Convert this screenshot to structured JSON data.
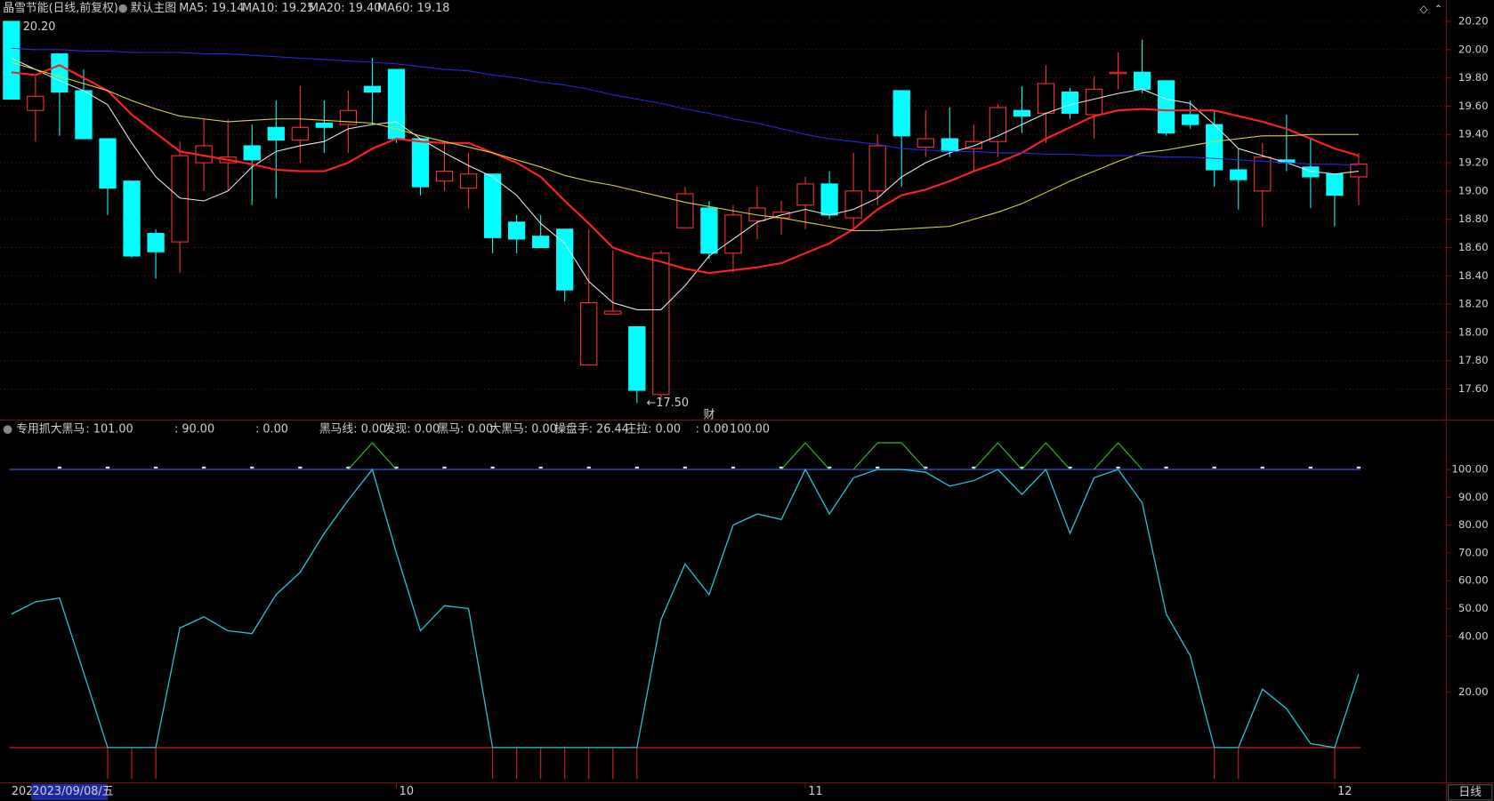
{
  "chart_data": [
    {
      "type": "candlestick",
      "title": "晶雪节能(日线,前复权)",
      "subtitle": "默认主图",
      "legend": [
        {
          "text": "MA5: 19.14",
          "color": "#e8e8e8"
        },
        {
          "text": "MA10: 19.25",
          "color": "#ff3030"
        },
        {
          "text": "MA20: 19.40",
          "color": "#e8e830"
        },
        {
          "text": "MA60: 19.18",
          "color": "#3a3aff"
        }
      ],
      "categories": [
        null,
        null,
        null,
        null,
        null,
        null,
        null,
        null,
        null,
        null,
        null,
        null,
        null,
        null,
        null,
        null,
        "10",
        null,
        null,
        null,
        null,
        null,
        null,
        null,
        null,
        null,
        null,
        null,
        null,
        null,
        null,
        null,
        null,
        "11",
        null,
        null,
        null,
        null,
        null,
        null,
        null,
        null,
        null,
        null,
        null,
        null,
        null,
        null,
        null,
        null,
        null,
        null,
        null,
        null,
        null,
        "12",
        null
      ],
      "open": [
        20.2,
        19.57,
        19.97,
        19.71,
        19.37,
        19.07,
        18.7,
        18.64,
        19.2,
        19.2,
        19.32,
        19.45,
        19.36,
        19.48,
        19.47,
        19.74,
        19.86,
        19.37,
        19.07,
        19.02,
        19.12,
        18.78,
        18.68,
        18.73,
        17.77,
        18.13,
        18.04,
        17.56,
        18.74,
        18.88,
        18.56,
        18.79,
        18.81,
        18.9,
        19.05,
        18.81,
        19.0,
        19.71,
        19.31,
        19.37,
        19.3,
        19.35,
        19.57,
        19.55,
        19.7,
        19.54,
        19.83,
        19.84,
        19.78,
        19.54,
        19.47,
        19.15,
        19.0,
        19.22,
        19.17,
        19.12,
        19.1
      ],
      "high": [
        20.2,
        19.81,
        19.97,
        19.86,
        19.37,
        19.07,
        18.73,
        19.35,
        19.51,
        19.51,
        19.47,
        19.64,
        19.74,
        19.64,
        19.71,
        19.94,
        19.86,
        19.37,
        19.34,
        19.27,
        19.12,
        18.83,
        18.83,
        18.73,
        18.73,
        18.58,
        18.04,
        18.58,
        19.03,
        18.93,
        18.9,
        19.03,
        18.93,
        19.1,
        19.14,
        19.27,
        19.4,
        19.71,
        19.57,
        19.59,
        19.47,
        19.61,
        19.74,
        19.89,
        19.73,
        19.81,
        19.98,
        20.07,
        19.78,
        19.64,
        19.57,
        19.3,
        19.34,
        19.54,
        19.37,
        19.12,
        19.27
      ],
      "low": [
        19.65,
        19.35,
        19.39,
        19.37,
        18.83,
        18.53,
        18.38,
        18.42,
        19.0,
        19.0,
        18.9,
        18.95,
        19.2,
        19.27,
        19.27,
        19.47,
        19.34,
        18.97,
        19.0,
        18.88,
        18.56,
        18.56,
        18.6,
        18.22,
        17.77,
        18.13,
        17.5,
        17.52,
        18.74,
        18.52,
        18.42,
        18.66,
        18.69,
        18.73,
        18.8,
        18.73,
        18.9,
        19.03,
        19.24,
        19.24,
        19.14,
        19.24,
        19.41,
        19.34,
        19.51,
        19.37,
        19.72,
        19.69,
        19.39,
        19.44,
        19.03,
        18.87,
        18.75,
        19.14,
        18.88,
        18.75,
        18.9
      ],
      "close": [
        19.65,
        19.67,
        19.7,
        19.37,
        19.02,
        18.54,
        18.57,
        19.25,
        19.32,
        19.24,
        19.22,
        19.36,
        19.45,
        19.45,
        19.57,
        19.7,
        19.37,
        19.03,
        19.14,
        19.12,
        18.67,
        18.66,
        18.6,
        18.3,
        18.21,
        18.15,
        17.59,
        18.56,
        18.98,
        18.56,
        18.83,
        18.88,
        18.85,
        19.05,
        18.83,
        19.0,
        19.32,
        19.39,
        19.37,
        19.28,
        19.35,
        19.59,
        19.53,
        19.76,
        19.55,
        19.72,
        19.84,
        19.72,
        19.41,
        19.47,
        19.15,
        19.08,
        19.24,
        19.2,
        19.1,
        18.97,
        19.19
      ],
      "up_color": "#ff3232",
      "down_color": "#00ffff",
      "ma": [
        {
          "color": "#e8e8e8",
          "values": [
            19.94,
            19.86,
            19.78,
            19.71,
            19.61,
            19.34,
            19.1,
            18.95,
            18.93,
            19.0,
            19.17,
            19.28,
            19.32,
            19.35,
            19.44,
            19.47,
            19.49,
            19.37,
            19.27,
            19.18,
            19.1,
            18.97,
            18.77,
            18.63,
            18.36,
            18.21,
            18.16,
            18.16,
            18.33,
            18.54,
            18.66,
            18.78,
            18.83,
            18.87,
            18.83,
            18.87,
            18.95,
            19.1,
            19.2,
            19.27,
            19.32,
            19.39,
            19.47,
            19.55,
            19.61,
            19.65,
            19.69,
            19.72,
            19.65,
            19.62,
            19.47,
            19.3,
            19.25,
            19.2,
            19.14,
            19.12,
            19.14
          ]
        },
        {
          "color": "#ff2020",
          "values": [
            19.84,
            19.82,
            19.89,
            19.8,
            19.71,
            19.54,
            19.41,
            19.28,
            19.25,
            19.22,
            19.19,
            19.15,
            19.14,
            19.14,
            19.2,
            19.3,
            19.37,
            19.35,
            19.34,
            19.34,
            19.27,
            19.2,
            19.1,
            18.93,
            18.77,
            18.6,
            18.54,
            18.5,
            18.45,
            18.42,
            18.44,
            18.46,
            18.49,
            18.56,
            18.63,
            18.73,
            18.87,
            18.97,
            19.01,
            19.07,
            19.14,
            19.2,
            19.27,
            19.37,
            19.45,
            19.53,
            19.57,
            19.58,
            19.57,
            19.57,
            19.57,
            19.53,
            19.49,
            19.44,
            19.37,
            19.3,
            19.25
          ]
        },
        {
          "color": "#d8d830",
          "values": [
            19.91,
            19.86,
            19.81,
            19.76,
            19.71,
            19.64,
            19.58,
            19.53,
            19.51,
            19.49,
            19.5,
            19.51,
            19.51,
            19.5,
            19.49,
            19.48,
            19.44,
            19.39,
            19.35,
            19.31,
            19.27,
            19.22,
            19.17,
            19.11,
            19.07,
            19.04,
            19.0,
            18.96,
            18.92,
            18.89,
            18.86,
            18.83,
            18.81,
            18.78,
            18.75,
            18.72,
            18.72,
            18.73,
            18.74,
            18.75,
            18.8,
            18.85,
            18.91,
            18.99,
            19.07,
            19.14,
            19.21,
            19.27,
            19.29,
            19.32,
            19.35,
            19.37,
            19.39,
            19.39,
            19.4,
            19.4,
            19.4
          ]
        },
        {
          "color": "#2828e8",
          "values": [
            20.01,
            20.0,
            20.0,
            19.99,
            19.99,
            19.98,
            19.98,
            19.98,
            19.97,
            19.97,
            19.96,
            19.95,
            19.94,
            19.93,
            19.92,
            19.91,
            19.9,
            19.88,
            19.86,
            19.85,
            19.82,
            19.8,
            19.77,
            19.75,
            19.72,
            19.68,
            19.65,
            19.62,
            19.58,
            19.55,
            19.51,
            19.48,
            19.44,
            19.4,
            19.37,
            19.35,
            19.33,
            19.3,
            19.29,
            19.28,
            19.28,
            19.27,
            19.27,
            19.26,
            19.26,
            19.25,
            19.25,
            19.25,
            19.24,
            19.24,
            19.23,
            19.22,
            19.21,
            19.2,
            19.19,
            19.19,
            19.18
          ]
        }
      ],
      "ylim": [
        17.38,
        20.25
      ],
      "yticks": [
        {
          "value": 20.2,
          "label": "20.20"
        },
        {
          "value": 20.0,
          "label": "20.00"
        },
        {
          "value": 19.8,
          "label": "19.80"
        },
        {
          "value": 19.6,
          "label": "19.60"
        },
        {
          "value": 19.4,
          "label": "19.40"
        },
        {
          "value": 19.2,
          "label": "19.20"
        },
        {
          "value": 19.0,
          "label": "19.00"
        },
        {
          "value": 18.8,
          "label": "18.80"
        },
        {
          "value": 18.6,
          "label": "18.60"
        },
        {
          "value": 18.4,
          "label": "18.40"
        },
        {
          "value": 18.2,
          "label": "18.20"
        },
        {
          "value": 18.0,
          "label": "18.00"
        },
        {
          "value": 17.8,
          "label": "17.80"
        },
        {
          "value": 17.6,
          "label": "17.60"
        }
      ],
      "grid": true,
      "annotations": [
        "20.20",
        "←17.50",
        "财"
      ],
      "start_label": "202",
      "cursor_label": "2023/09/08/五",
      "period": "日线"
    },
    {
      "type": "line",
      "title": "专用抓大黑马",
      "legend": [
        {
          "text": ": 101.00",
          "color": "#30e030"
        },
        {
          "text": ": 90.00",
          "color": "#ff3030"
        },
        {
          "text": ": 0.00",
          "color": "#ff3030"
        },
        {
          "text": "黑马线: 0.00",
          "color": "#90b030"
        },
        {
          "text": "发现: 0.00",
          "color": "#f0f020"
        },
        {
          "text": "黑马: 0.00",
          "color": "#30e030"
        },
        {
          "text": "大黑马: 0.00",
          "color": "#e0e0e0"
        },
        {
          "text": "操盘手: 26.44",
          "color": "#30e0f0"
        },
        {
          "text": "庄拉: 0.00",
          "color": "#ff3030"
        },
        {
          "text": ": 0.00",
          "color": "#a02020"
        },
        {
          "text": ": 100.00",
          "color": "#80a0ff"
        }
      ],
      "color": "#20c8d8",
      "values": [
        48,
        52.4,
        53.8,
        27,
        0,
        0,
        0,
        43,
        47,
        42,
        41,
        55,
        63,
        77,
        89,
        100,
        70,
        42,
        51,
        50,
        0,
        0,
        0,
        0,
        0,
        0,
        0,
        46,
        66,
        55,
        80,
        84,
        82,
        100,
        84,
        97,
        100,
        100,
        99,
        94,
        96,
        100,
        91,
        100,
        77,
        97,
        100,
        88,
        48,
        33,
        0,
        0,
        21,
        14,
        1.4,
        0,
        26.44
      ],
      "ylim": [
        -12.7,
        116.4
      ],
      "yticks": [
        {
          "value": 100,
          "label": "100.00"
        },
        {
          "value": 90,
          "label": "90.00"
        },
        {
          "value": 80,
          "label": "80.00"
        },
        {
          "value": 70,
          "label": "70.00"
        },
        {
          "value": 60,
          "label": "60.00"
        },
        {
          "value": 50,
          "label": "50.00"
        },
        {
          "value": 40,
          "label": "40.00"
        },
        {
          "value": 20,
          "label": "20.00"
        }
      ]
    }
  ]
}
